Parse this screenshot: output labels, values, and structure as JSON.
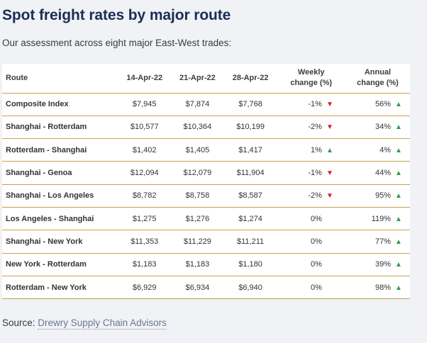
{
  "title": "Spot freight rates by major route",
  "subtitle": "Our assessment across eight major East-West trades:",
  "source_label": "Source:",
  "source_link": "Drewry Supply Chain Advisors",
  "colors": {
    "title": "#1b2e54",
    "rule": "#c9a24e",
    "up": "#2e9e4a",
    "down": "#d42020"
  },
  "chart_data": {
    "type": "table",
    "columns": [
      "Route",
      "14-Apr-22",
      "21-Apr-22",
      "28-Apr-22",
      "Weekly change (%)",
      "Annual change (%)"
    ],
    "header": {
      "route": "Route",
      "d1": "14-Apr-22",
      "d2": "21-Apr-22",
      "d3": "28-Apr-22",
      "weekly_line1": "Weekly",
      "weekly_line2": "change (%)",
      "annual_line1": "Annual",
      "annual_line2": "change (%)"
    },
    "rows": [
      {
        "route": "Composite Index",
        "d1": "$7,945",
        "d2": "$7,874",
        "d3": "$7,768",
        "weekly": "-1%",
        "weekly_dir": "down",
        "annual": "56%",
        "annual_dir": "up"
      },
      {
        "route": "Shanghai - Rotterdam",
        "d1": "$10,577",
        "d2": "$10,364",
        "d3": "$10,199",
        "weekly": "-2%",
        "weekly_dir": "down",
        "annual": "34%",
        "annual_dir": "up"
      },
      {
        "route": "Rotterdam - Shanghai",
        "d1": "$1,402",
        "d2": "$1,405",
        "d3": "$1,417",
        "weekly": "1%",
        "weekly_dir": "up",
        "annual": "4%",
        "annual_dir": "up"
      },
      {
        "route": "Shanghai - Genoa",
        "d1": "$12,094",
        "d2": "$12,079",
        "d3": "$11,904",
        "weekly": "-1%",
        "weekly_dir": "down",
        "annual": "44%",
        "annual_dir": "up"
      },
      {
        "route": "Shanghai - Los Angeles",
        "d1": "$8,782",
        "d2": "$8,758",
        "d3": "$8,587",
        "weekly": "-2%",
        "weekly_dir": "down",
        "annual": "95%",
        "annual_dir": "up"
      },
      {
        "route": "Los Angeles - Shanghai",
        "d1": "$1,275",
        "d2": "$1,276",
        "d3": "$1,274",
        "weekly": "0%",
        "weekly_dir": "none",
        "annual": "119%",
        "annual_dir": "up"
      },
      {
        "route": "Shanghai - New York",
        "d1": "$11,353",
        "d2": "$11,229",
        "d3": "$11,211",
        "weekly": "0%",
        "weekly_dir": "none",
        "annual": "77%",
        "annual_dir": "up"
      },
      {
        "route": "New York - Rotterdam",
        "d1": "$1,183",
        "d2": "$1,183",
        "d3": "$1,180",
        "weekly": "0%",
        "weekly_dir": "none",
        "annual": "39%",
        "annual_dir": "up"
      },
      {
        "route": "Rotterdam - New York",
        "d1": "$6,929",
        "d2": "$6,934",
        "d3": "$6,940",
        "weekly": "0%",
        "weekly_dir": "none",
        "annual": "98%",
        "annual_dir": "up"
      }
    ]
  }
}
